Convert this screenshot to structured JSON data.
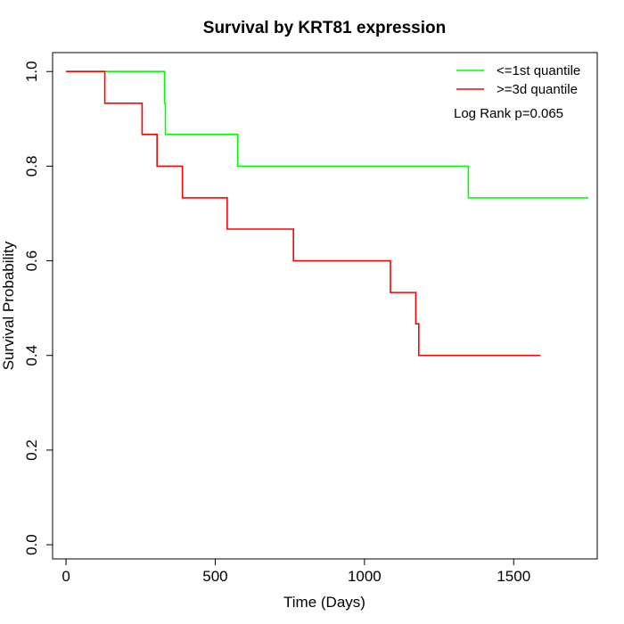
{
  "chart_data": {
    "type": "line",
    "title": "Survival by KRT81 expression",
    "xlabel": "Time (Days)",
    "ylabel": "Survival Probability",
    "xlim": [
      -45,
      1780
    ],
    "ylim": [
      -0.03,
      1.04
    ],
    "x_ticks": [
      0,
      500,
      1000,
      1500
    ],
    "y_ticks": [
      0.0,
      0.2,
      0.4,
      0.6,
      0.8,
      1.0
    ],
    "y_tick_labels": [
      "0.0",
      "0.2",
      "0.4",
      "0.6",
      "0.8",
      "1.0"
    ],
    "grid": false,
    "legend_position": "top-right",
    "annotation": "Log Rank p=0.065",
    "series": [
      {
        "name": "<=1st quantile",
        "color": "#00ff00",
        "steps": [
          [
            0,
            1.0
          ],
          [
            330,
            0.933
          ],
          [
            333,
            0.867
          ],
          [
            575,
            0.8
          ],
          [
            1348,
            0.733
          ],
          [
            1750,
            0.733
          ]
        ]
      },
      {
        "name": ">=3d quantile",
        "color": "#ff0000",
        "steps": [
          [
            0,
            1.0
          ],
          [
            130,
            0.933
          ],
          [
            255,
            0.867
          ],
          [
            305,
            0.8
          ],
          [
            390,
            0.733
          ],
          [
            540,
            0.667
          ],
          [
            762,
            0.6
          ],
          [
            1087,
            0.533
          ],
          [
            1172,
            0.467
          ],
          [
            1182,
            0.4
          ],
          [
            1590,
            0.4
          ]
        ]
      }
    ]
  }
}
